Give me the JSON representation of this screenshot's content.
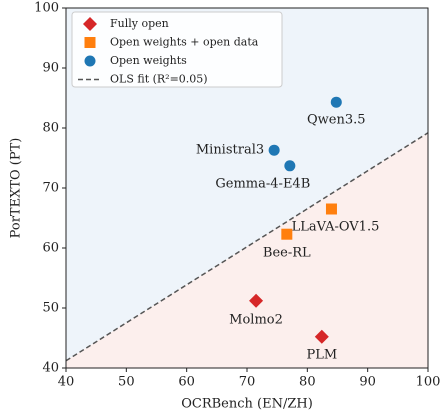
{
  "chart_data": {
    "type": "scatter",
    "xlabel": "OCRBench (EN/ZH)",
    "ylabel": "PorTEXTO (PT)",
    "xlim": [
      40,
      100
    ],
    "ylim": [
      40,
      100
    ],
    "xticks": [
      40,
      50,
      60,
      70,
      80,
      90,
      100
    ],
    "yticks": [
      40,
      50,
      60,
      70,
      80,
      90,
      100
    ],
    "legend": "upper left",
    "series": [
      {
        "name": "Fully open",
        "color": "#d62728",
        "marker": "diamond",
        "x": [
          71.5,
          82.4
        ],
        "y": [
          51.2,
          45.2
        ],
        "labels": [
          "Molmo2",
          "PLM"
        ]
      },
      {
        "name": "Open weights + open data",
        "color": "#ff7f0e",
        "marker": "square",
        "x": [
          84.0,
          76.6
        ],
        "y": [
          66.5,
          62.3
        ],
        "labels": [
          "LLaVA-OV1.5",
          "Bee-RL"
        ]
      },
      {
        "name": "Open weights",
        "color": "#1f77b4",
        "marker": "circle",
        "x": [
          84.8,
          74.5,
          77.1
        ],
        "y": [
          84.3,
          76.3,
          73.7
        ],
        "labels": [
          "Qwen3.5",
          "Ministral3",
          "Gemma-4-E4B"
        ]
      }
    ],
    "fit": {
      "name": "OLS fit (R²=0.05)",
      "color": "#555555",
      "x": [
        40,
        100
      ],
      "y": [
        41.2,
        79.2
      ]
    }
  }
}
